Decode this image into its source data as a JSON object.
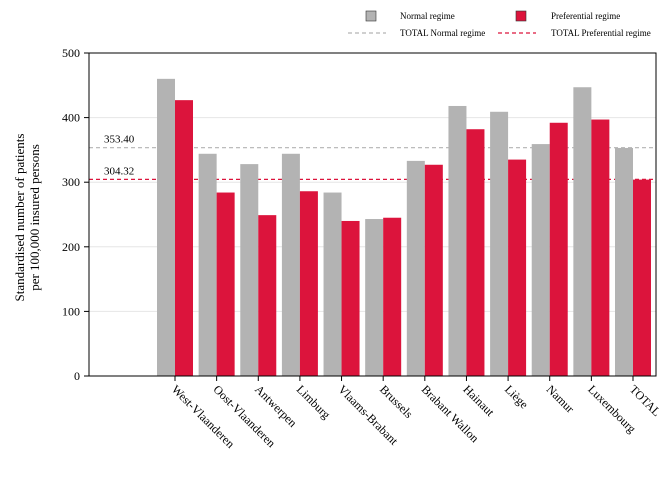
{
  "chart_data": {
    "type": "bar",
    "ylabel_lines": [
      "Standardised number of patients",
      "per 100,000 insured persons"
    ],
    "ylim": [
      0,
      500
    ],
    "yticks": [
      0,
      100,
      200,
      300,
      400,
      500
    ],
    "grid": true,
    "legend_position": "top",
    "categories": [
      "West-Vlaanderen",
      "Oost-Vlaanderen",
      "Antwerpen",
      "Limburg",
      "Vlaams-Brabant",
      "Brussels",
      "Brabant Wallon",
      "Hainaut",
      "Liège",
      "Namur",
      "Luxembourg",
      "TOTAL"
    ],
    "series": [
      {
        "name": "Normal regime",
        "color": "#b3b3b3",
        "values": [
          460,
          344,
          328,
          344,
          284,
          243,
          333,
          418,
          409,
          359,
          447,
          353
        ]
      },
      {
        "name": "Preferential regime",
        "color": "#dc143c",
        "values": [
          427,
          284,
          249,
          286,
          240,
          245,
          327,
          382,
          335,
          392,
          397,
          304
        ]
      }
    ],
    "reference_lines": [
      {
        "name": "TOTAL Normal regime",
        "value": 353.4,
        "label": "353.40",
        "color": "#b3b3b3"
      },
      {
        "name": "TOTAL Preferential regime",
        "value": 304.32,
        "label": "304.32",
        "color": "#dc143c"
      }
    ]
  }
}
